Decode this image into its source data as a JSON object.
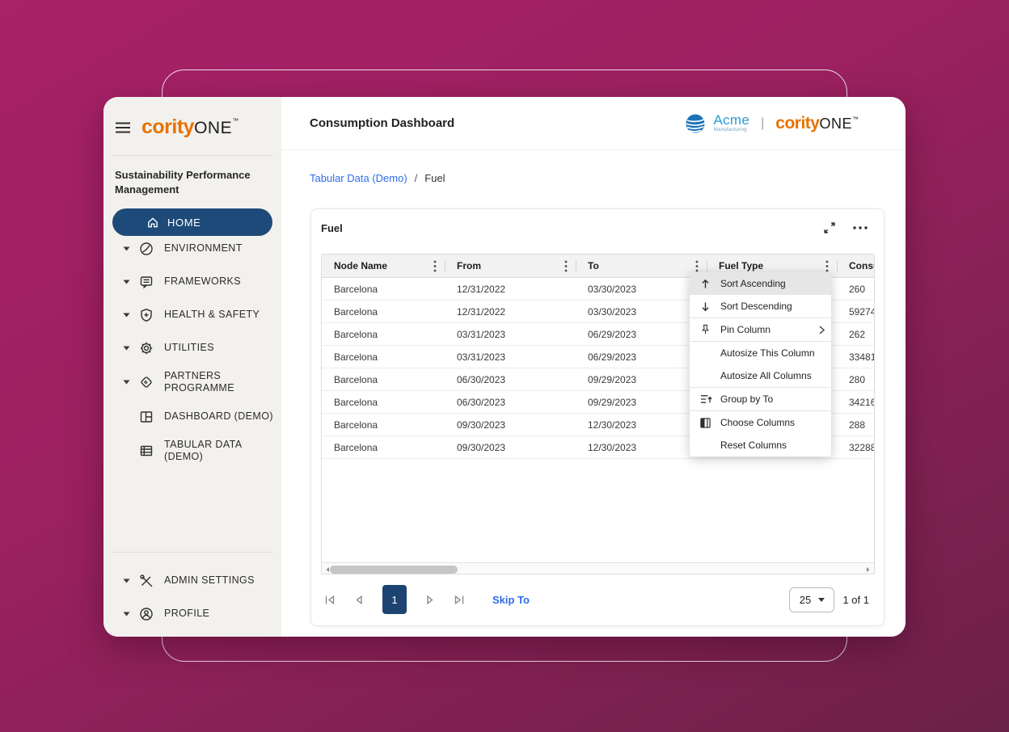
{
  "theme": {
    "bg_gradient_start": "#a82169",
    "bg_gradient_end": "#6b2147",
    "navy": "#1d4a78",
    "brand_orange": "#e87200",
    "link_blue": "#2e6de8",
    "acme_blue": "#2a9bd5"
  },
  "sidebar": {
    "logo": {
      "cority": "cority",
      "one": "ONE",
      "tm": "™"
    },
    "section_title": "Sustainability Performance Management",
    "home_label": "HOME",
    "items": [
      {
        "label": "ENVIRONMENT",
        "icon": "leaf-icon",
        "expandable": true
      },
      {
        "label": "FRAMEWORKS",
        "icon": "frameworks-icon",
        "expandable": true
      },
      {
        "label": "HEALTH & SAFETY",
        "icon": "shield-plus-icon",
        "expandable": true
      },
      {
        "label": "UTILITIES",
        "icon": "gear-icon",
        "expandable": true
      },
      {
        "label": "PARTNERS PROGRAMME",
        "icon": "handshake-icon",
        "expandable": true
      },
      {
        "label": "DASHBOARD (DEMO)",
        "icon": "dashboard-icon",
        "expandable": false
      },
      {
        "label": "TABULAR DATA (DEMO)",
        "icon": "table-icon",
        "expandable": false
      }
    ],
    "footer_items": [
      {
        "label": "ADMIN SETTINGS",
        "icon": "tools-icon",
        "expandable": true
      },
      {
        "label": "PROFILE",
        "icon": "person-icon",
        "expandable": true
      }
    ]
  },
  "header": {
    "title": "Consumption Dashboard",
    "acme_name": "Acme",
    "acme_sub": "Manufacturing",
    "separator": "|",
    "logo": {
      "cority": "cority",
      "one": "ONE",
      "tm": "™"
    }
  },
  "breadcrumb": {
    "parent": "Tabular Data (Demo)",
    "divider": "/",
    "current": "Fuel"
  },
  "card": {
    "title": "Fuel"
  },
  "table": {
    "columns": [
      {
        "label": "Node Name"
      },
      {
        "label": "From"
      },
      {
        "label": "To"
      },
      {
        "label": "Fuel Type"
      },
      {
        "label": "Consu"
      }
    ],
    "rows": [
      [
        "Barcelona",
        "12/31/2022",
        "03/30/2023",
        "",
        "260"
      ],
      [
        "Barcelona",
        "12/31/2022",
        "03/30/2023",
        "",
        "59274"
      ],
      [
        "Barcelona",
        "03/31/2023",
        "06/29/2023",
        "",
        "262"
      ],
      [
        "Barcelona",
        "03/31/2023",
        "06/29/2023",
        "",
        "33481"
      ],
      [
        "Barcelona",
        "06/30/2023",
        "09/29/2023",
        "",
        "280"
      ],
      [
        "Barcelona",
        "06/30/2023",
        "09/29/2023",
        "",
        "34216"
      ],
      [
        "Barcelona",
        "09/30/2023",
        "12/30/2023",
        "",
        "288"
      ],
      [
        "Barcelona",
        "09/30/2023",
        "12/30/2023",
        "",
        "32288"
      ]
    ]
  },
  "context_menu": {
    "items": [
      {
        "label": "Sort Ascending",
        "icon": "sort-ascending-icon",
        "active": true
      },
      {
        "label": "Sort Descending",
        "icon": "sort-descending-icon"
      },
      {
        "label": "Pin Column",
        "icon": "pin-icon",
        "submenu": true,
        "separator_before": true
      },
      {
        "label": "Autosize This Column",
        "separator_before": true
      },
      {
        "label": "Autosize All Columns"
      },
      {
        "label": "Group by To",
        "icon": "group-icon",
        "separator_before": true
      },
      {
        "label": "Choose Columns",
        "icon": "columns-icon",
        "separator_before": true
      },
      {
        "label": "Reset Columns"
      }
    ]
  },
  "pagination": {
    "current_page": "1",
    "skip_to_label": "Skip To",
    "page_size": "25",
    "range_label": "1 of 1"
  }
}
